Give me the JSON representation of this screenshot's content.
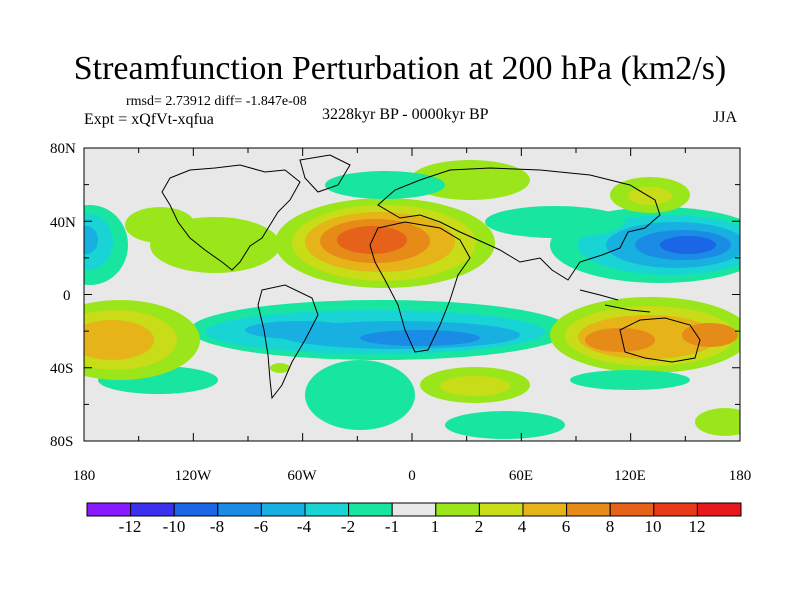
{
  "title": "Streamfunction Perturbation at 200 hPa (km2/s)",
  "stats": "rmsd= 2.73912 diff= -1.847e-08",
  "experiment": "Expt = xQfVt-xqfua",
  "period": "3228kyr BP - 0000kyr BP",
  "season": "JJA",
  "lat_labels": [
    "80N",
    "40N",
    "0",
    "40S",
    "80S"
  ],
  "lon_labels": [
    "180",
    "120W",
    "60W",
    "0",
    "60E",
    "120E",
    "180"
  ],
  "colorbar": {
    "labels": [
      "-12",
      "-10",
      "-8",
      "-6",
      "-4",
      "-2",
      "-1",
      "1",
      "2",
      "4",
      "6",
      "8",
      "10",
      "12"
    ],
    "colors": [
      "#8a1aff",
      "#3b30f0",
      "#1a66e6",
      "#1a8ce6",
      "#18b0e0",
      "#18d4d4",
      "#18e6a0",
      "#e8e8e8",
      "#9ae61a",
      "#c8dc18",
      "#e6b418",
      "#e68a18",
      "#e6621a",
      "#e63a18",
      "#e61a1a"
    ]
  },
  "anomalies": [
    {
      "lon": -20,
      "lat": 30,
      "level": 7,
      "note": "N Africa high"
    },
    {
      "lon": 145,
      "lat": 30,
      "level": -6,
      "note": "NW Pacific low"
    },
    {
      "lon": 125,
      "lat": -22,
      "level": 6,
      "note": "Australia high"
    },
    {
      "lon": -155,
      "lat": -20,
      "level": 4,
      "note": "S Pacific high"
    },
    {
      "lon": -40,
      "lat": -15,
      "level": -4,
      "note": "S Atlantic band"
    },
    {
      "lon": 15,
      "lat": -25,
      "level": -5,
      "note": "S Africa low"
    },
    {
      "lon": -178,
      "lat": 30,
      "level": -4,
      "note": "Dateline low"
    },
    {
      "lon": 35,
      "lat": -48,
      "level": 3,
      "note": "S Indian high"
    },
    {
      "lon": 175,
      "lat": -70,
      "level": 2,
      "note": "Ross high"
    },
    {
      "lon": 40,
      "lat": 68,
      "level": 1,
      "note": "Arctic high"
    },
    {
      "lon": 100,
      "lat": 55,
      "level": -2,
      "note": "Siberia low"
    },
    {
      "lon": -105,
      "lat": 15,
      "level": 2,
      "note": "Mexico high"
    }
  ]
}
